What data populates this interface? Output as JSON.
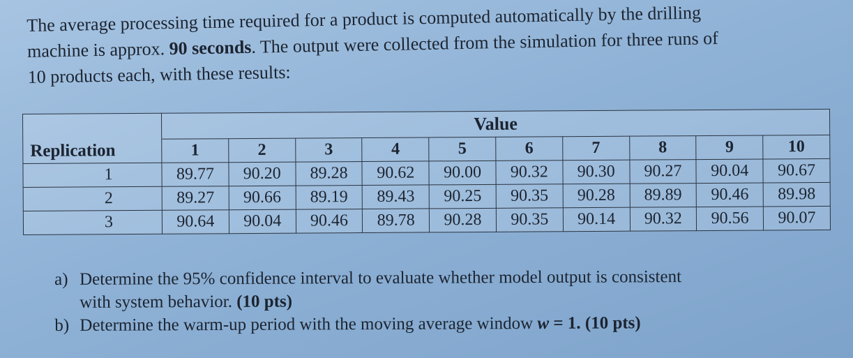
{
  "intro": {
    "line1": "The average processing time required for a product is computed automatically by the drilling",
    "line2_pre": "machine is approx. ",
    "line2_bold": "90 seconds",
    "line2_post": ". The output were collected from the simulation for three runs of",
    "line3": "10 products each, with these results:"
  },
  "table": {
    "group_header": "Value",
    "row_header": "Replication",
    "columns": [
      "1",
      "2",
      "3",
      "4",
      "5",
      "6",
      "7",
      "8",
      "9",
      "10"
    ],
    "rows": [
      {
        "rep": "1",
        "values": [
          "89.77",
          "90.20",
          "89.28",
          "90.62",
          "90.00",
          "90.32",
          "90.30",
          "90.27",
          "90.04",
          "90.67"
        ]
      },
      {
        "rep": "2",
        "values": [
          "89.27",
          "90.66",
          "89.19",
          "89.43",
          "90.25",
          "90.35",
          "90.28",
          "89.89",
          "90.46",
          "89.98"
        ]
      },
      {
        "rep": "3",
        "values": [
          "90.64",
          "90.04",
          "90.46",
          "89.78",
          "90.28",
          "90.35",
          "90.14",
          "90.32",
          "90.56",
          "90.07"
        ]
      }
    ]
  },
  "questions": {
    "a": {
      "label": "a)",
      "line1": "Determine the 95% confidence interval to evaluate whether model output is consistent",
      "line2_pre": "with system behavior. ",
      "line2_bold": "(10 pts)"
    },
    "b": {
      "label": "b)",
      "text_pre": "Determine the warm-up period with the moving average window ",
      "var": "w",
      "text_eq": " = 1. (10 pts)"
    }
  }
}
